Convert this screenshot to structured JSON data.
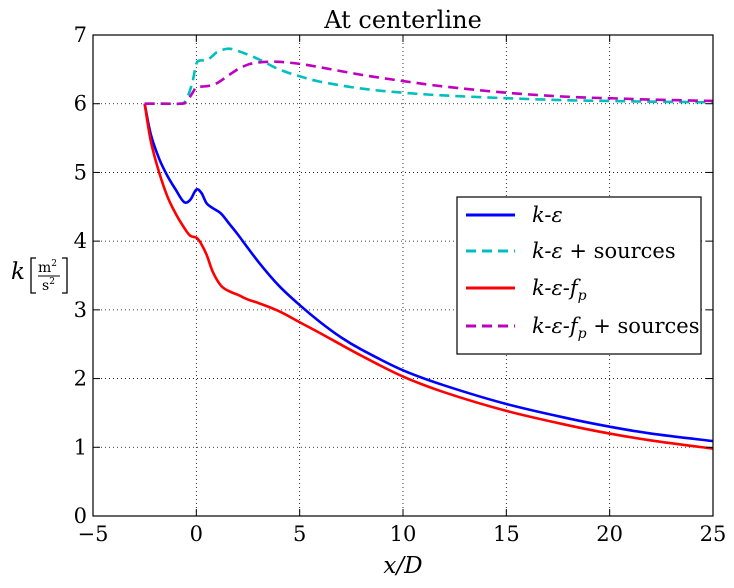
{
  "chart_data": {
    "type": "line",
    "title": "At centerline",
    "xlabel": "x/D",
    "ylabel": "k [m²/s²]",
    "ylabel_parts": {
      "symbol": "k",
      "num": "m",
      "num_exp": "2",
      "den": "s",
      "den_exp": "2"
    },
    "xlim": [
      -5,
      25
    ],
    "ylim": [
      0,
      7
    ],
    "xticks": [
      -5,
      0,
      5,
      10,
      15,
      20,
      25
    ],
    "yticks": [
      0,
      1,
      2,
      3,
      4,
      5,
      6,
      7
    ],
    "xtick_labels": [
      "−5",
      "0",
      "5",
      "10",
      "15",
      "20",
      "25"
    ],
    "ytick_labels": [
      "0",
      "1",
      "2",
      "3",
      "4",
      "5",
      "6",
      "7"
    ],
    "grid": true,
    "legend_position": "center-right",
    "series": [
      {
        "name": "k-ε",
        "legend_label": {
          "a": "k",
          "b": "-ε",
          "c": "",
          "d": "",
          "e": ""
        },
        "color": "#0000ff",
        "style": "solid",
        "x": [
          -2.5,
          -2.2,
          -1.8,
          -1.4,
          -1.0,
          -0.6,
          -0.3,
          0.0,
          0.25,
          0.5,
          0.8,
          1.2,
          1.6,
          2.0,
          3.0,
          4.0,
          5.0,
          6.0,
          7.0,
          8.0,
          10.0,
          12.0,
          15.0,
          18.0,
          20.0,
          22.0,
          25.0
        ],
        "y": [
          6.0,
          5.55,
          5.2,
          4.95,
          4.75,
          4.57,
          4.6,
          4.75,
          4.7,
          4.55,
          4.48,
          4.4,
          4.25,
          4.1,
          3.7,
          3.35,
          3.07,
          2.82,
          2.6,
          2.42,
          2.12,
          1.9,
          1.63,
          1.42,
          1.3,
          1.2,
          1.09
        ]
      },
      {
        "name": "k-ε + sources",
        "legend_label": {
          "a": "k",
          "b": "-ε",
          "c": "",
          "d": "",
          "e": " + sources"
        },
        "color": "#00bfbf",
        "style": "dashed",
        "x": [
          -2.5,
          -1.5,
          -0.8,
          -0.5,
          -0.2,
          0.0,
          0.2,
          0.5,
          0.8,
          1.0,
          1.5,
          2.0,
          3.0,
          4.0,
          5.0,
          6.0,
          8.0,
          10.0,
          12.0,
          15.0,
          18.0,
          20.0,
          22.0,
          25.0
        ],
        "y": [
          6.0,
          6.0,
          6.0,
          6.05,
          6.3,
          6.58,
          6.63,
          6.63,
          6.7,
          6.75,
          6.8,
          6.77,
          6.65,
          6.5,
          6.4,
          6.32,
          6.22,
          6.16,
          6.12,
          6.08,
          6.05,
          6.04,
          6.03,
          6.02
        ]
      },
      {
        "name": "k-ε-f_p",
        "legend_label": {
          "a": "k",
          "b": "-ε-",
          "c": "f",
          "d": "p",
          "e": ""
        },
        "color": "#ff0000",
        "style": "solid",
        "x": [
          -2.5,
          -2.2,
          -1.8,
          -1.4,
          -1.0,
          -0.6,
          -0.3,
          0.0,
          0.2,
          0.5,
          0.8,
          1.2,
          1.6,
          2.0,
          2.5,
          3.0,
          4.0,
          5.0,
          6.0,
          8.0,
          10.0,
          12.0,
          15.0,
          18.0,
          20.0,
          22.0,
          25.0
        ],
        "y": [
          6.0,
          5.45,
          5.0,
          4.65,
          4.4,
          4.2,
          4.08,
          4.05,
          3.98,
          3.8,
          3.55,
          3.35,
          3.27,
          3.22,
          3.15,
          3.1,
          2.98,
          2.82,
          2.66,
          2.33,
          2.03,
          1.8,
          1.53,
          1.32,
          1.2,
          1.1,
          0.98
        ]
      },
      {
        "name": "k-ε-f_p + sources",
        "legend_label": {
          "a": "k",
          "b": "-ε-",
          "c": "f",
          "d": "p",
          "e": " + sources"
        },
        "color": "#bf00bf",
        "style": "dashed",
        "x": [
          -2.5,
          -1.5,
          -0.8,
          -0.5,
          -0.2,
          0.0,
          0.3,
          0.6,
          1.0,
          1.5,
          2.0,
          2.5,
          3.0,
          3.5,
          4.0,
          5.0,
          6.0,
          8.0,
          10.0,
          12.0,
          15.0,
          18.0,
          20.0,
          22.0,
          25.0
        ],
        "y": [
          6.0,
          6.0,
          6.0,
          6.02,
          6.15,
          6.24,
          6.25,
          6.26,
          6.3,
          6.4,
          6.5,
          6.57,
          6.6,
          6.61,
          6.61,
          6.58,
          6.53,
          6.42,
          6.33,
          6.25,
          6.16,
          6.1,
          6.08,
          6.06,
          6.04
        ]
      }
    ]
  }
}
